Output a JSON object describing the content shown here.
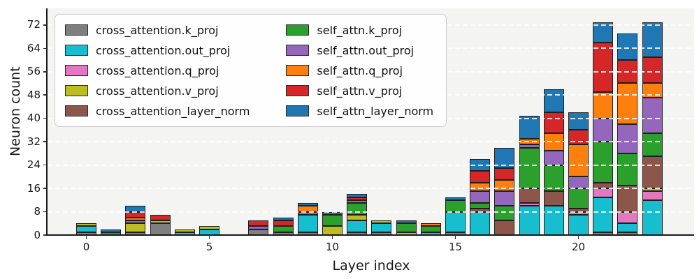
{
  "chart_data": {
    "type": "bar",
    "stacked": true,
    "title": "",
    "xlabel": "Layer index",
    "ylabel": "Neuron count",
    "x": [
      0,
      1,
      2,
      3,
      4,
      5,
      6,
      7,
      8,
      9,
      10,
      11,
      12,
      13,
      14,
      15,
      16,
      17,
      18,
      19,
      20,
      21,
      22,
      23
    ],
    "xticks": [
      0,
      5,
      10,
      15,
      20
    ],
    "yticks": [
      0,
      8,
      16,
      24,
      32,
      40,
      48,
      56,
      64,
      72
    ],
    "ylim": [
      0,
      77.7
    ],
    "grid": "horizontal-dashed-white-over-bars",
    "plot_background": "#f4f4f3",
    "bar_edge_color": "#1f1f1f",
    "legend_position": "upper-left",
    "legend_columns": 2,
    "series": [
      {
        "name": "cross_attention.k_proj",
        "color": "#7f7f7f",
        "values": [
          1,
          0,
          1,
          4,
          0,
          0,
          0,
          2,
          1,
          1,
          0,
          1,
          1,
          0,
          0,
          1,
          0,
          0,
          0,
          0,
          0,
          1,
          1,
          0
        ]
      },
      {
        "name": "cross_attention.out_proj",
        "color": "#17becf",
        "values": [
          2,
          0,
          0,
          0,
          1,
          2,
          0,
          0,
          0,
          6,
          0,
          4,
          3,
          0,
          1,
          7,
          8,
          0,
          10,
          10,
          7,
          12,
          3,
          12
        ]
      },
      {
        "name": "cross_attention.q_proj",
        "color": "#e377c2",
        "values": [
          0,
          0,
          0,
          0,
          0,
          0,
          0,
          0,
          0,
          0,
          0,
          0,
          0,
          0,
          0,
          0,
          0,
          0,
          1,
          0,
          1,
          3,
          4,
          3
        ]
      },
      {
        "name": "cross_attention.v_proj",
        "color": "#bcbd22",
        "values": [
          1,
          0,
          3,
          1,
          1,
          1,
          0,
          0,
          0,
          0,
          3,
          2,
          1,
          1,
          0,
          0,
          0,
          0,
          0,
          0,
          0,
          0,
          0,
          1
        ]
      },
      {
        "name": "cross_attention_layer_norm",
        "color": "#8c564b",
        "values": [
          0,
          0,
          0,
          0,
          0,
          0,
          0,
          0,
          0,
          0,
          0,
          0,
          0,
          0,
          0,
          0,
          1,
          5,
          5,
          5,
          1,
          2,
          9,
          11
        ]
      },
      {
        "name": "self_attn.k_proj",
        "color": "#2ca02c",
        "values": [
          0,
          1,
          0,
          0,
          0,
          0,
          0,
          0,
          2,
          0,
          4,
          4,
          0,
          3,
          2,
          4,
          2,
          5,
          14,
          9,
          7,
          14,
          11,
          8
        ]
      },
      {
        "name": "self_attn.out_proj",
        "color": "#9467bd",
        "values": [
          0,
          0,
          1,
          0,
          0,
          0,
          0,
          1,
          0,
          1,
          0,
          1,
          0,
          0,
          0,
          0,
          4,
          5,
          1,
          5,
          4,
          8,
          10,
          12
        ]
      },
      {
        "name": "self_attn.q_proj",
        "color": "#ff7f0e",
        "values": [
          0,
          0,
          1,
          0,
          0,
          0,
          0,
          0,
          0,
          2,
          0,
          0,
          0,
          0,
          1,
          0,
          3,
          4,
          2,
          6,
          11,
          9,
          14,
          5
        ]
      },
      {
        "name": "self_attn.v_proj",
        "color": "#d62728",
        "values": [
          0,
          0,
          2,
          2,
          0,
          0,
          0,
          2,
          2,
          0,
          0,
          1,
          0,
          0,
          0,
          0,
          4,
          4,
          0,
          7,
          5,
          17,
          8,
          9
        ]
      },
      {
        "name": "self_attn_layer_norm",
        "color": "#1f77b4",
        "values": [
          0,
          1,
          2,
          0,
          0,
          0,
          0,
          0,
          1,
          1,
          1,
          1,
          0,
          1,
          0,
          1,
          4,
          7,
          8,
          8,
          6,
          7,
          9,
          12
        ]
      }
    ]
  }
}
